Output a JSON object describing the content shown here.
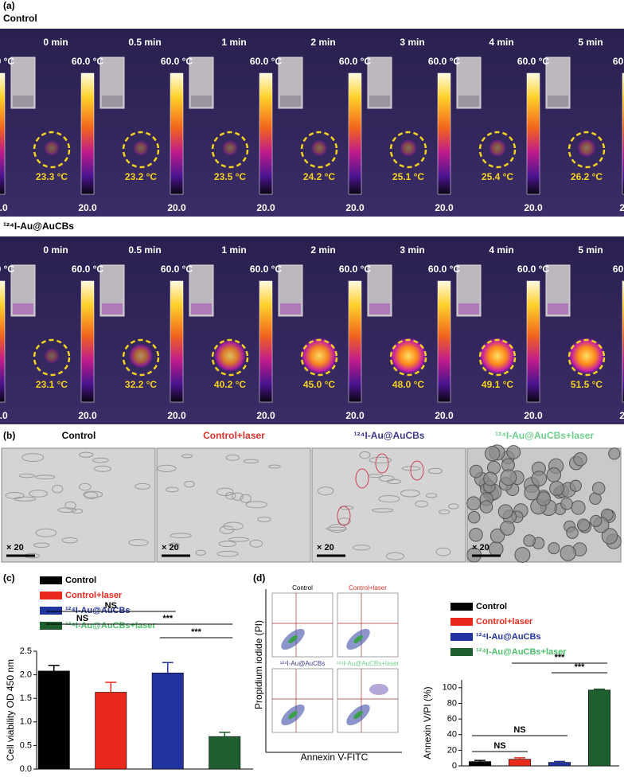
{
  "panel_a": {
    "label": "(a)",
    "scale_top": "60.0 °C",
    "scale_bottom": "20.0",
    "groups": [
      {
        "title": "Control",
        "times": [
          "0 min",
          "0.5 min",
          "1 min",
          "2 min",
          "3 min",
          "4 min",
          "5 min"
        ],
        "temps": [
          "23.3 °C",
          "23.2 °C",
          "23.5 °C",
          "24.2 °C",
          "25.1 °C",
          "25.4 °C",
          "26.2 °C"
        ]
      },
      {
        "title": "¹²⁴I-Au@AuCBs",
        "times": [
          "0 min",
          "0.5 min",
          "1 min",
          "2 min",
          "3 min",
          "4 min",
          "5 min"
        ],
        "temps": [
          "23.1 °C",
          "32.2 °C",
          "40.2 °C",
          "45.0 °C",
          "48.0 °C",
          "49.1 °C",
          "51.5 °C"
        ]
      }
    ]
  },
  "panel_b": {
    "label": "(b)",
    "titles": [
      "Control",
      "Control+laser",
      "¹²⁴I-Au@AuCBs",
      "¹²⁴I-Au@AuCBs+laser"
    ],
    "magnification": "× 20"
  },
  "panel_d_flow": {
    "titles": [
      "Control",
      "Control+laser",
      "¹²⁴I-Au@AuCBs",
      "¹²⁴I-Au@AuCBs+laser"
    ],
    "ylabel": "Propidium iodide (PI)",
    "xlabel": "Annexin V-FITC"
  },
  "chart_data": [
    {
      "type": "bar",
      "panel": "(c)",
      "ylabel": "Cell viability OD 450 nm",
      "categories": [
        "Control",
        "Control+laser",
        "¹²⁴I-Au@AuCBs",
        "¹²⁴I-Au@AuCBs+laser"
      ],
      "colors": [
        "#000000",
        "#e8291c",
        "#2233a0",
        "#1f5e2e"
      ],
      "values": [
        2.08,
        1.63,
        2.04,
        0.69
      ],
      "errors": [
        0.12,
        0.21,
        0.22,
        0.09
      ],
      "ylim": [
        0,
        2.5
      ],
      "yticks": [
        {
          "value": 0,
          "label": "0.0"
        },
        0.5,
        {
          "value": 1,
          "label": "1.0"
        },
        1.5,
        {
          "value": 2,
          "label": "2.0"
        },
        2.5
      ],
      "annotations": [
        {
          "text": "NS",
          "between": [
            0,
            2
          ]
        },
        {
          "text": "NS",
          "between": [
            0,
            1
          ]
        },
        {
          "text": "***",
          "between": [
            1,
            3
          ]
        },
        {
          "text": "***",
          "between": [
            2,
            3
          ]
        }
      ]
    },
    {
      "type": "bar",
      "panel": "(d)",
      "ylabel": "Annexin V/PI (%)",
      "categories": [
        "Control",
        "Control+laser",
        "¹²⁴I-Au@AuCBs",
        "¹²⁴I-Au@AuCBs+laser"
      ],
      "colors": [
        "#000000",
        "#e8291c",
        "#2233a0",
        "#1f5e2e"
      ],
      "values": [
        5.5,
        8.5,
        4.5,
        97
      ],
      "errors": [
        1.5,
        1.8,
        1.2,
        1.2
      ],
      "ylim": [
        0,
        110
      ],
      "yticks": [
        0,
        20,
        40,
        60,
        80,
        100
      ],
      "annotations": [
        {
          "text": "***",
          "between": [
            1,
            3
          ]
        },
        {
          "text": "***",
          "between": [
            2,
            3
          ]
        },
        {
          "text": "NS",
          "between": [
            0,
            2
          ]
        },
        {
          "text": "NS",
          "between": [
            0,
            1
          ]
        }
      ]
    }
  ]
}
